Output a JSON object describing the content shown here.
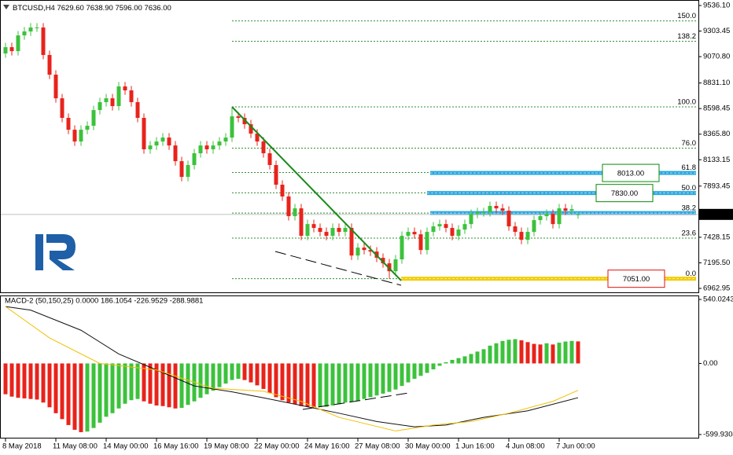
{
  "chart_data": {
    "type": "candlestick",
    "header": {
      "symbol": "BTCUSD,H4",
      "quote": [
        "7629.60",
        "7638.90",
        "7596.00",
        "7636.00"
      ]
    },
    "categories": [
      "8 May 2018",
      null,
      null,
      null,
      null,
      null,
      null,
      null,
      "11 May 08:00",
      null,
      null,
      null,
      null,
      null,
      null,
      null,
      "14 May 00:00",
      null,
      null,
      null,
      null,
      null,
      null,
      null,
      "16 May 16:00",
      null,
      null,
      null,
      null,
      null,
      null,
      null,
      "19 May 08:00",
      null,
      null,
      null,
      null,
      null,
      null,
      null,
      "22 May 00:00",
      null,
      null,
      null,
      null,
      null,
      null,
      null,
      "24 May 16:00",
      null,
      null,
      null,
      null,
      null,
      null,
      null,
      "27 May 08:00",
      null,
      null,
      null,
      null,
      null,
      null,
      null,
      "30 May 00:00",
      null,
      null,
      null,
      null,
      null,
      null,
      null,
      "1 Jun 16:00",
      null,
      null,
      null,
      null,
      null,
      null,
      null,
      "4 Jun 08:00",
      null,
      null,
      null,
      null,
      null,
      null,
      null,
      "7 Jun 00:00",
      null,
      null,
      null
    ],
    "open": [
      9100,
      9157,
      9121,
      9264,
      9300,
      9336,
      9336,
      9086,
      8907,
      8692,
      8514,
      8406,
      8299,
      8406,
      8442,
      8585,
      8657,
      8692,
      8621,
      8800,
      8764,
      8657,
      8514,
      8228,
      8263,
      8299,
      8335,
      8263,
      8120,
      7977,
      8085,
      8192,
      8263,
      8228,
      8263,
      8299,
      8335,
      8528,
      8514,
      8456,
      8371,
      8299,
      8192,
      8085,
      7906,
      7799,
      7620,
      7691,
      7441,
      7548,
      7513,
      7477,
      7441,
      7513,
      7477,
      7513,
      7262,
      7334,
      7312,
      7298,
      7241,
      7191,
      7119,
      7227,
      7441,
      7477,
      7455,
      7312,
      7477,
      7527,
      7548,
      7513,
      7441,
      7498,
      7548,
      7641,
      7656,
      7656,
      7713,
      7691,
      7670,
      7527,
      7477,
      7405,
      7477,
      7584,
      7620,
      7641,
      7548,
      7691,
      7670,
      7629.6
    ],
    "high": [
      9197,
      9197,
      9304,
      9340,
      9376,
      9376,
      9376,
      9126,
      8947,
      8732,
      8554,
      8446,
      8446,
      8482,
      8625,
      8697,
      8732,
      8732,
      8840,
      8840,
      8804,
      8697,
      8554,
      8303,
      8339,
      8375,
      8375,
      8303,
      8160,
      8125,
      8232,
      8303,
      8303,
      8303,
      8339,
      8375,
      8614,
      8568,
      8554,
      8496,
      8411,
      8339,
      8232,
      8125,
      7946,
      7839,
      7731,
      7731,
      7588,
      7588,
      7553,
      7517,
      7553,
      7553,
      7553,
      7553,
      7374,
      7374,
      7352,
      7338,
      7281,
      7231,
      7267,
      7481,
      7517,
      7517,
      7495,
      7517,
      7567,
      7588,
      7588,
      7553,
      7538,
      7588,
      7681,
      7696,
      7696,
      7753,
      7753,
      7731,
      7710,
      7567,
      7517,
      7517,
      7624,
      7660,
      7681,
      7681,
      7731,
      7731,
      7724,
      7638.9
    ],
    "low": [
      9060,
      9081,
      9081,
      9224,
      9260,
      9296,
      9046,
      8867,
      8652,
      8474,
      8366,
      8259,
      8259,
      8366,
      8402,
      8545,
      8617,
      8581,
      8581,
      8724,
      8617,
      8474,
      8188,
      8188,
      8223,
      8259,
      8223,
      8080,
      7937,
      7937,
      8045,
      8152,
      8188,
      8188,
      8223,
      8259,
      8295,
      8474,
      8416,
      8331,
      8259,
      8152,
      8045,
      7866,
      7759,
      7580,
      7580,
      7401,
      7401,
      7473,
      7437,
      7401,
      7401,
      7437,
      7437,
      7222,
      7222,
      7272,
      7258,
      7201,
      7151,
      7051,
      7079,
      7187,
      7401,
      7415,
      7272,
      7272,
      7437,
      7487,
      7473,
      7401,
      7401,
      7458,
      7508,
      7601,
      7616,
      7616,
      7651,
      7630,
      7487,
      7437,
      7365,
      7365,
      7437,
      7544,
      7580,
      7508,
      7508,
      7630,
      7630,
      7596
    ],
    "close": [
      9157,
      9121,
      9264,
      9300,
      9336,
      9336,
      9086,
      8907,
      8692,
      8514,
      8406,
      8299,
      8406,
      8442,
      8585,
      8657,
      8692,
      8621,
      8800,
      8764,
      8657,
      8514,
      8228,
      8263,
      8299,
      8335,
      8263,
      8120,
      7977,
      8085,
      8192,
      8263,
      8228,
      8263,
      8299,
      8335,
      8528,
      8514,
      8456,
      8371,
      8299,
      8192,
      8085,
      7906,
      7799,
      7620,
      7691,
      7441,
      7548,
      7513,
      7477,
      7441,
      7513,
      7477,
      7513,
      7262,
      7334,
      7312,
      7298,
      7241,
      7191,
      7119,
      7227,
      7441,
      7477,
      7455,
      7312,
      7477,
      7527,
      7548,
      7513,
      7441,
      7498,
      7548,
      7641,
      7656,
      7656,
      7713,
      7691,
      7670,
      7527,
      7477,
      7405,
      7477,
      7584,
      7620,
      7641,
      7548,
      7691,
      7670,
      7684,
      7636
    ],
    "up_color": "#3cc23c",
    "down_color": "#e8231b",
    "ylim": [
      6920,
      9586
    ],
    "yticks": [
      {
        "value": 9536.1,
        "label": "9536.10"
      },
      {
        "value": 9303.45,
        "label": "9303.45"
      },
      {
        "value": 9070.8,
        "label": "9070.80"
      },
      {
        "value": 8831.1,
        "label": "8831.10"
      },
      {
        "value": 8598.45,
        "label": "8598.45"
      },
      {
        "value": 8365.8,
        "label": "8365.80"
      },
      {
        "value": 8133.15,
        "label": "8133.15"
      },
      {
        "value": 7893.45,
        "label": "7893.45"
      },
      {
        "value": 7428.15,
        "label": "7428.15"
      },
      {
        "value": 7195.5,
        "label": "7195.50"
      },
      {
        "value": 6962.95,
        "label": "6962.95"
      }
    ],
    "fib_color": "#2f8f2f",
    "fib": [
      {
        "label": "150.0",
        "price": 9396
      },
      {
        "label": "138.2",
        "price": 9211
      },
      {
        "label": "100.0",
        "price": 8614
      },
      {
        "label": "76.0",
        "price": 8239
      },
      {
        "label": "61.8",
        "price": 8017
      },
      {
        "label": "50.0",
        "price": 7832
      },
      {
        "label": "38.2",
        "price": 7648
      },
      {
        "label": "23.6",
        "price": 7420
      },
      {
        "label": "0.0",
        "price": 7051
      }
    ],
    "levels": [
      {
        "value": 8013,
        "label": "8013.00",
        "color": "#2aa8e0",
        "text_color": "#0a8a0a"
      },
      {
        "value": 7830,
        "label": "7830.00",
        "color": "#2aa8e0",
        "text_color": "#0a8a0a"
      },
      {
        "value": 7648,
        "color": "#2aa8e0"
      },
      {
        "value": 7051,
        "label": "7051.00",
        "color": "#f2cc00",
        "text_color": "#e01010"
      }
    ],
    "indicator": {
      "title": "MACD-2 (50,150,25) 0.0000 186.1054 -226.9529 -288.9881",
      "ylim": [
        -633.5,
        573.5
      ],
      "yticks": [
        {
          "value": 540.0243,
          "label": "540.0243"
        },
        {
          "value": 0,
          "label": "0.00"
        },
        {
          "value": -599.9304,
          "label": "-599.9304"
        }
      ],
      "histogram": [
        -260,
        -280,
        -290,
        -295,
        -300,
        -305,
        -330,
        -370,
        -420,
        -470,
        -520,
        -560,
        -580,
        -575,
        -545,
        -500,
        -450,
        -420,
        -380,
        -340,
        -310,
        -300,
        -320,
        -340,
        -355,
        -360,
        -370,
        -380,
        -375,
        -350,
        -320,
        -290,
        -260,
        -230,
        -200,
        -170,
        -140,
        -130,
        -140,
        -160,
        -185,
        -215,
        -250,
        -285,
        -310,
        -330,
        -345,
        -360,
        -365,
        -370,
        -368,
        -365,
        -355,
        -345,
        -330,
        -325,
        -315,
        -300,
        -285,
        -270,
        -255,
        -240,
        -220,
        -190,
        -160,
        -130,
        -105,
        -80,
        -50,
        -20,
        10,
        30,
        45,
        60,
        80,
        100,
        120,
        150,
        170,
        190,
        200,
        205,
        195,
        180,
        165,
        160,
        170,
        160,
        175,
        185,
        190,
        186
      ],
      "lines": [
        {
          "color": "#111111",
          "x": [
            0,
            4,
            12,
            18,
            24,
            30,
            36,
            41,
            47,
            53,
            59,
            65,
            70,
            76,
            83,
            91
          ],
          "values": [
            480,
            450,
            280,
            80,
            -55,
            -190,
            -240,
            -290,
            -355,
            -420,
            -490,
            -535,
            -520,
            -455,
            -400,
            -289
          ]
        },
        {
          "color": "#f0c000",
          "x": [
            0,
            7,
            15,
            24,
            33,
            41,
            47,
            53,
            62,
            68,
            74,
            80,
            87,
            91
          ],
          "values": [
            480,
            215,
            0,
            -55,
            -210,
            -235,
            -320,
            -455,
            -570,
            -520,
            -490,
            -420,
            -320,
            -227
          ]
        }
      ]
    }
  }
}
